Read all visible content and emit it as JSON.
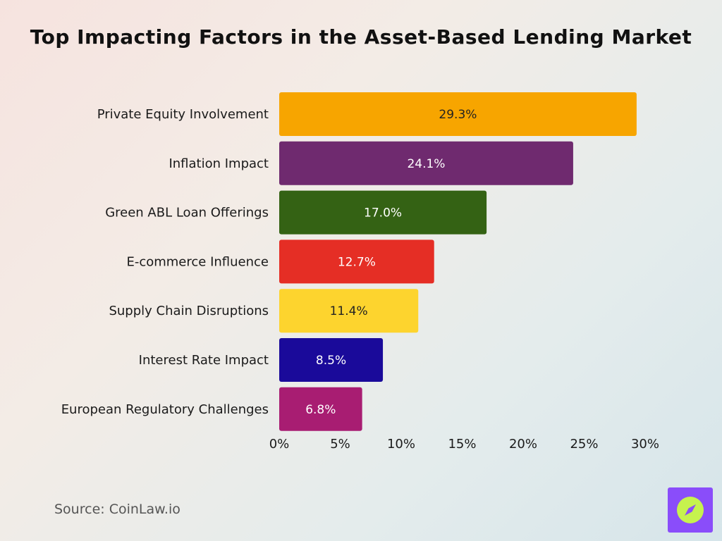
{
  "chart_data": {
    "type": "bar",
    "orientation": "horizontal",
    "title": "Top Impacting Factors in the Asset-Based Lending Market",
    "categories": [
      "Private Equity Involvement",
      "Inflation Impact",
      "Green ABL Loan Offerings",
      "E-commerce Influence",
      "Supply Chain Disruptions",
      "Interest Rate Impact",
      "European Regulatory Challenges"
    ],
    "values": [
      29.3,
      24.1,
      17.0,
      12.7,
      11.4,
      8.5,
      6.8
    ],
    "data_labels": [
      "29.3%",
      "24.1%",
      "17.0%",
      "12.7%",
      "11.4%",
      "8.5%",
      "6.8%"
    ],
    "bar_colors": [
      "#f7a500",
      "#6f2a6f",
      "#346214",
      "#e52e25",
      "#fdd42e",
      "#1a0a9a",
      "#a81d72"
    ],
    "label_colors": [
      "#222222",
      "#ffffff",
      "#ffffff",
      "#ffffff",
      "#222222",
      "#ffffff",
      "#ffffff"
    ],
    "xlim": [
      0,
      30
    ],
    "xticks": [
      0,
      5,
      10,
      15,
      20,
      25,
      30
    ],
    "xtick_labels": [
      "0%",
      "5%",
      "10%",
      "15%",
      "20%",
      "25%",
      "30%"
    ],
    "xlabel": "",
    "ylabel": "",
    "grid": false,
    "legend": "none"
  },
  "source": "Source: CoinLaw.io",
  "logo": {
    "icon": "compass-icon",
    "background": "#8a4dfa",
    "accent": "#c6f24e"
  }
}
